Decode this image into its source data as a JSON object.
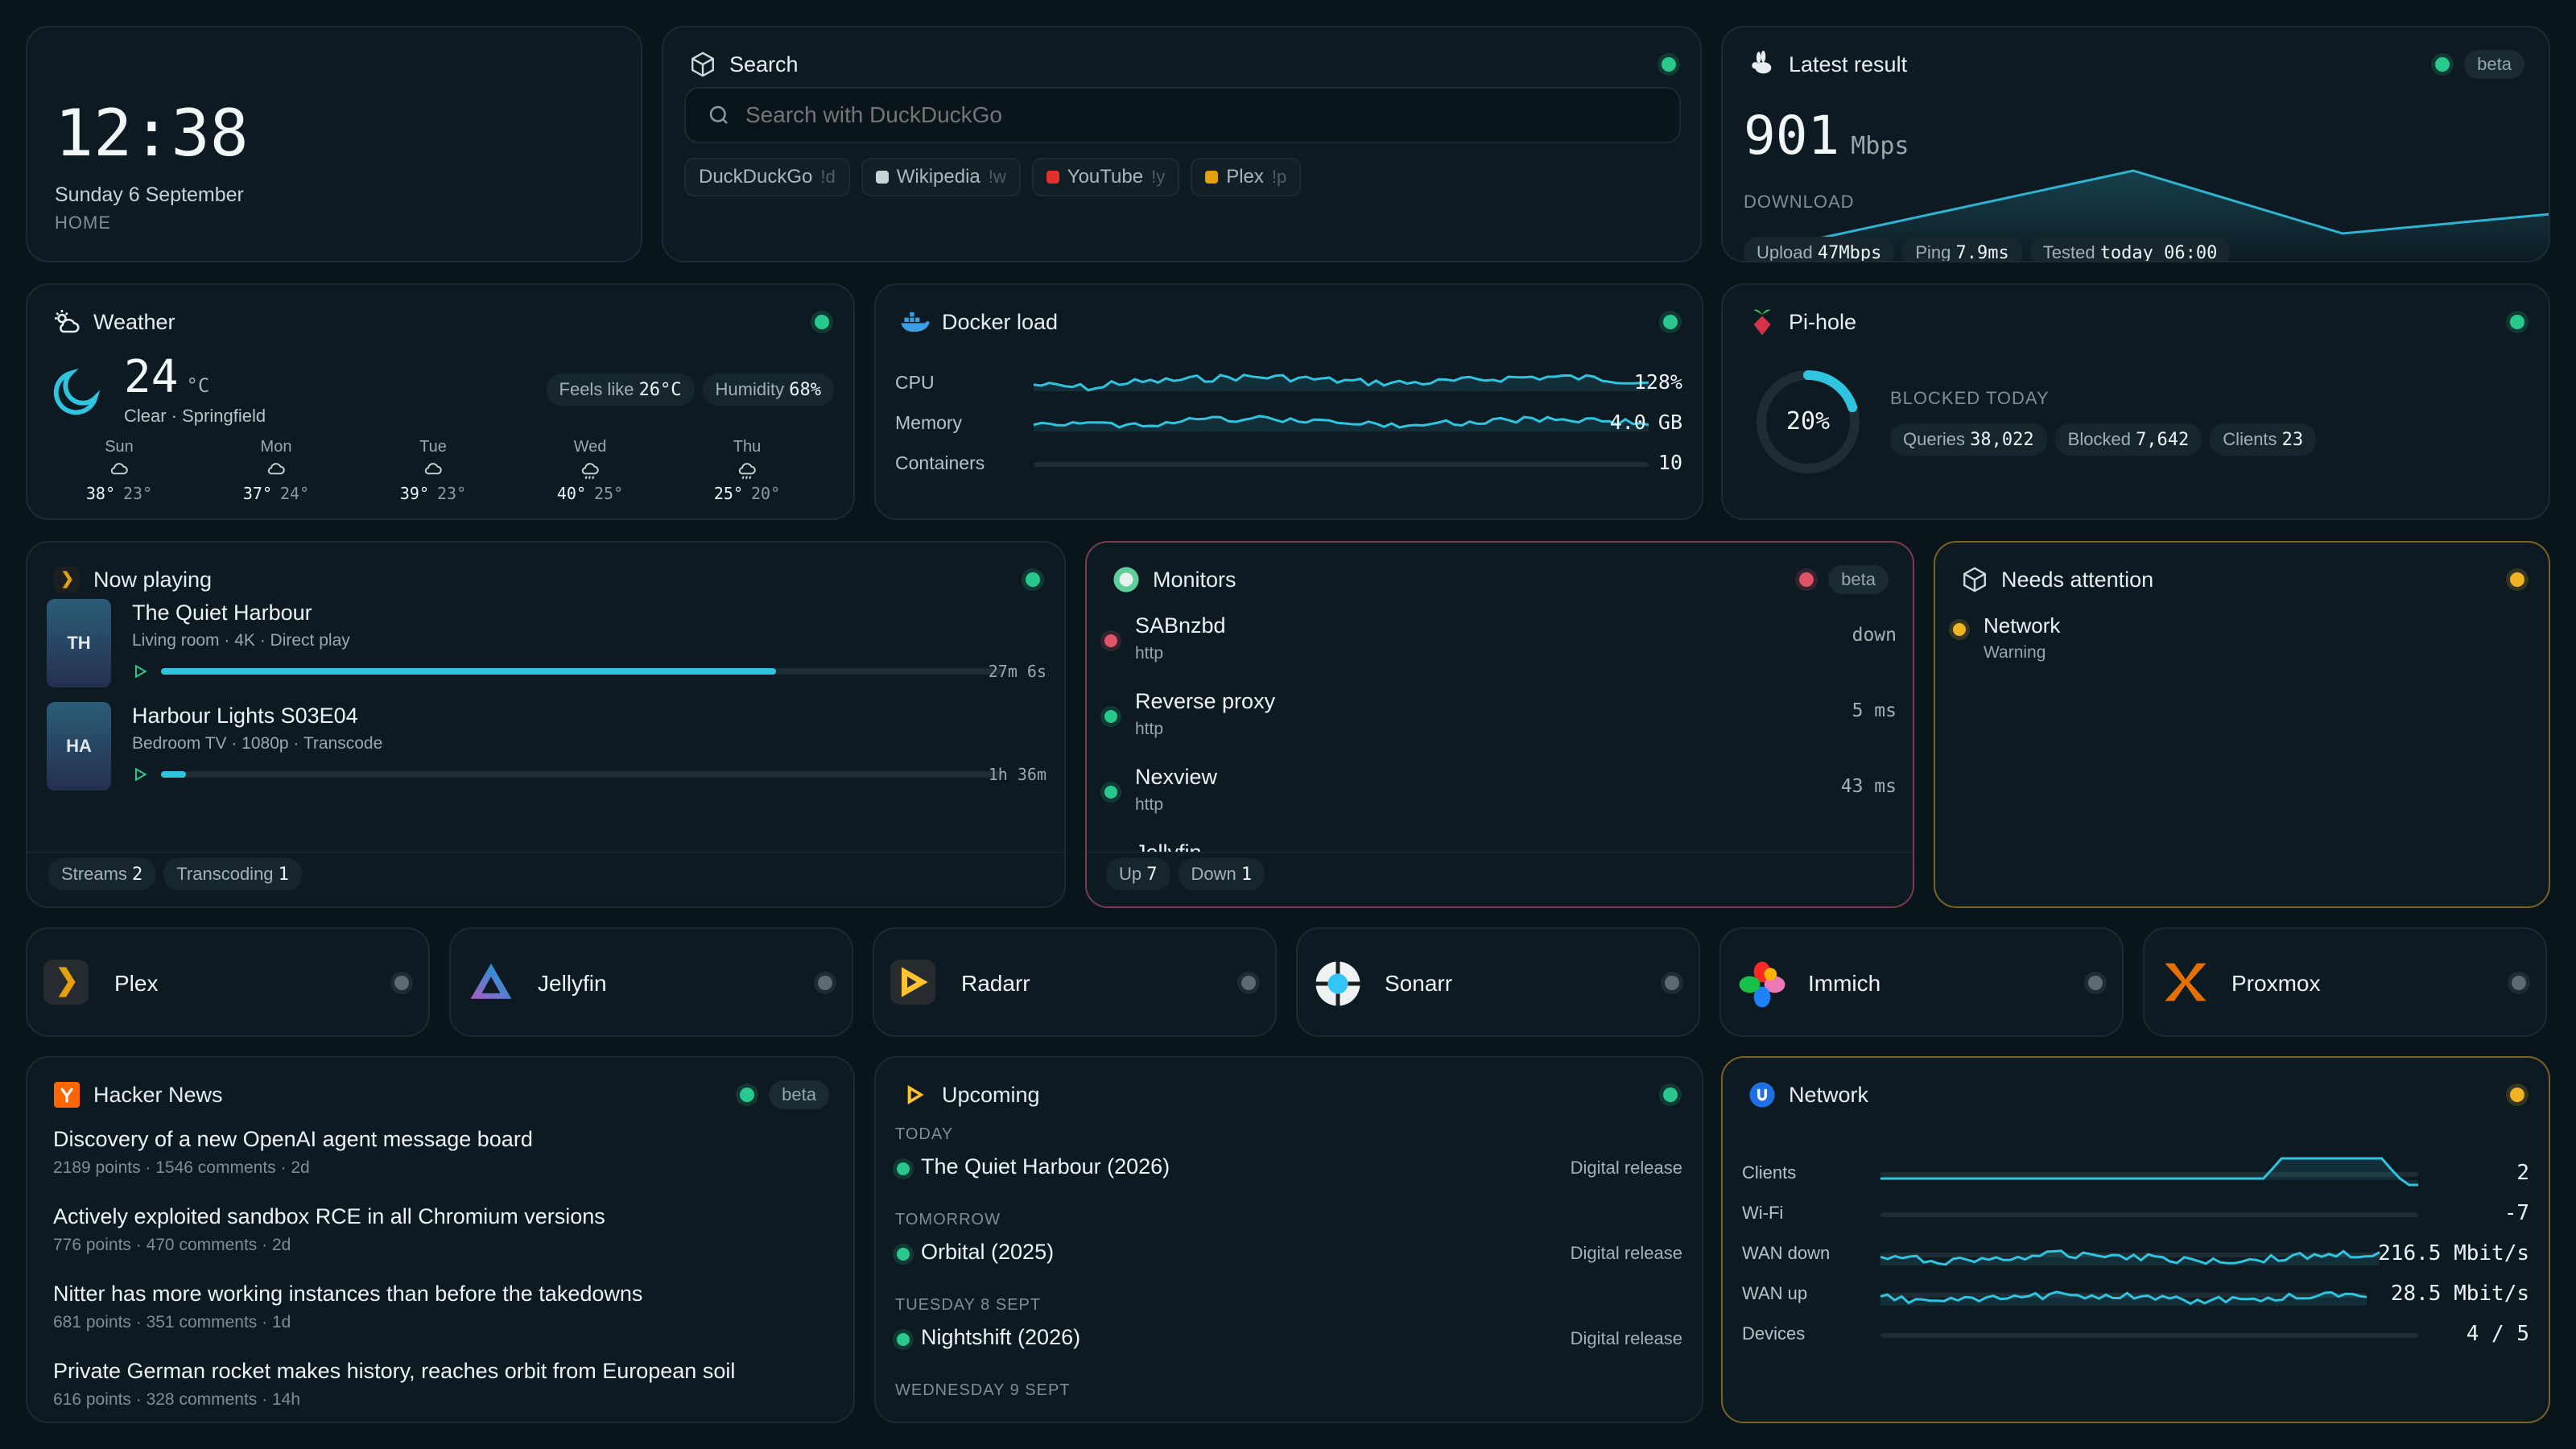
{
  "clock": {
    "time": "12:38",
    "date": "Sunday 6 September",
    "location": "HOME"
  },
  "search": {
    "title": "Search",
    "placeholder": "Search with DuckDuckGo",
    "engines": [
      {
        "name": "DuckDuckGo",
        "key": "!d"
      },
      {
        "name": "Wikipedia",
        "key": "!w"
      },
      {
        "name": "YouTube",
        "key": "!y"
      },
      {
        "name": "Plex",
        "key": "!p"
      }
    ]
  },
  "speedtest": {
    "title": "Latest result",
    "badge": "beta",
    "value": "901",
    "unit": "Mbps",
    "label": "DOWNLOAD",
    "upload_label": "Upload",
    "upload": "47Mbps",
    "ping_label": "Ping",
    "ping": "7.9ms",
    "tested_label": "Tested",
    "tested": "today 06:00"
  },
  "weather": {
    "title": "Weather",
    "temp": "24",
    "unit": "°C",
    "condition": "Clear · Springfield",
    "feels_label": "Feels like",
    "feels": "26°C",
    "humidity_label": "Humidity",
    "humidity": "68%",
    "forecast": [
      {
        "day": "Sun",
        "hi": "38°",
        "lo": "23°",
        "icon": "cloud-icon"
      },
      {
        "day": "Mon",
        "hi": "37°",
        "lo": "24°",
        "icon": "cloud-icon"
      },
      {
        "day": "Tue",
        "hi": "39°",
        "lo": "23°",
        "icon": "cloud-icon"
      },
      {
        "day": "Wed",
        "hi": "40°",
        "lo": "25°",
        "icon": "rain-icon"
      },
      {
        "day": "Thu",
        "hi": "25°",
        "lo": "20°",
        "icon": "rain-icon"
      }
    ]
  },
  "docker": {
    "title": "Docker load",
    "rows": [
      {
        "label": "CPU",
        "value": "128%"
      },
      {
        "label": "Memory",
        "value": "4.0 GB"
      },
      {
        "label": "Containers",
        "value": "10"
      }
    ]
  },
  "pihole": {
    "title": "Pi-hole",
    "percent": "20%",
    "percent_value": 20,
    "label": "BLOCKED TODAY",
    "queries_label": "Queries",
    "queries": "38,022",
    "blocked_label": "Blocked",
    "blocked": "7,642",
    "clients_label": "Clients",
    "clients": "23"
  },
  "nowplaying": {
    "title": "Now playing",
    "items": [
      {
        "initials": "TH",
        "title": "The Quiet Harbour",
        "sub": "Living room · 4K · Direct play",
        "remaining": "27m 6s",
        "progress": 0.73
      },
      {
        "initials": "HA",
        "title": "Harbour Lights S03E04",
        "sub": "Bedroom TV · 1080p · Transcode",
        "remaining": "1h 36m",
        "progress": 0.03
      }
    ],
    "streams_label": "Streams",
    "streams": "2",
    "transcoding_label": "Transcoding",
    "transcoding": "1"
  },
  "monitors": {
    "title": "Monitors",
    "badge": "beta",
    "items": [
      {
        "name": "SABnzbd",
        "type": "http",
        "status": "down",
        "color": "red"
      },
      {
        "name": "Reverse proxy",
        "type": "http",
        "status": "5 ms",
        "color": "green"
      },
      {
        "name": "Nexview",
        "type": "http",
        "status": "43 ms",
        "color": "green"
      },
      {
        "name": "Jellyfin",
        "type": "",
        "status": "",
        "color": "green"
      }
    ],
    "up_label": "Up",
    "up": "7",
    "down_label": "Down",
    "down": "1"
  },
  "attention": {
    "title": "Needs attention",
    "items": [
      {
        "name": "Network",
        "status": "Warning"
      }
    ]
  },
  "apps": [
    {
      "name": "Plex",
      "icon": "plex-icon"
    },
    {
      "name": "Jellyfin",
      "icon": "jellyfin-icon"
    },
    {
      "name": "Radarr",
      "icon": "radarr-icon"
    },
    {
      "name": "Sonarr",
      "icon": "sonarr-icon"
    },
    {
      "name": "Immich",
      "icon": "immich-icon"
    },
    {
      "name": "Proxmox",
      "icon": "proxmox-icon"
    }
  ],
  "hn": {
    "title": "Hacker News",
    "badge": "beta",
    "items": [
      {
        "title": "Discovery of a new OpenAI agent message board",
        "meta": "2189 points · 1546 comments · 2d"
      },
      {
        "title": "Actively exploited sandbox RCE in all Chromium versions",
        "meta": "776 points · 470 comments · 2d"
      },
      {
        "title": "Nitter has more working instances than before the takedowns",
        "meta": "681 points · 351 comments · 1d"
      },
      {
        "title": "Private German rocket makes history, reaches orbit from European soil",
        "meta": "616 points · 328 comments · 14h"
      }
    ]
  },
  "upcoming": {
    "title": "Upcoming",
    "groups": [
      {
        "label": "TODAY",
        "items": [
          {
            "title": "The Quiet Harbour (2026)",
            "kind": "Digital release"
          }
        ]
      },
      {
        "label": "TOMORROW",
        "items": [
          {
            "title": "Orbital (2025)",
            "kind": "Digital release"
          }
        ]
      },
      {
        "label": "TUESDAY 8 SEPT",
        "items": [
          {
            "title": "Nightshift (2026)",
            "kind": "Digital release"
          }
        ]
      },
      {
        "label": "WEDNESDAY 9 SEPT",
        "items": []
      }
    ]
  },
  "network": {
    "title": "Network",
    "rows": [
      {
        "label": "Clients",
        "value": "2"
      },
      {
        "label": "Wi-Fi",
        "value": "-7"
      },
      {
        "label": "WAN down",
        "value": "216.5 Mbit/s"
      },
      {
        "label": "WAN up",
        "value": "28.5 Mbit/s"
      },
      {
        "label": "Devices",
        "value": "4 / 5"
      }
    ]
  }
}
